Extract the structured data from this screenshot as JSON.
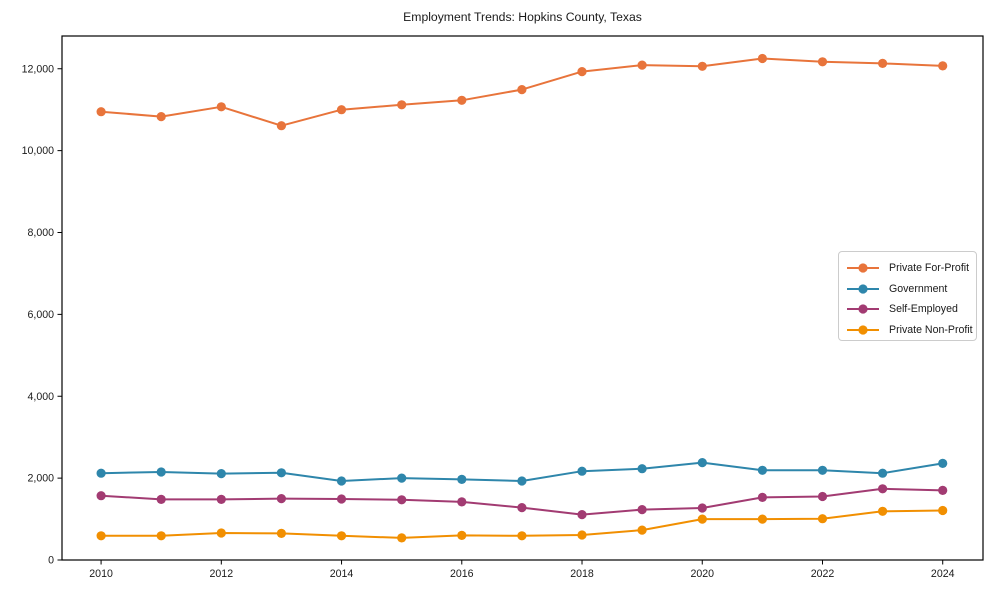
{
  "window": {
    "background_color": "#ffffff"
  },
  "chart_data": {
    "type": "line",
    "title": "Employment Trends: Hopkins County, Texas",
    "xlabel": "",
    "ylabel": "",
    "x": [
      2010,
      2011,
      2012,
      2013,
      2014,
      2015,
      2016,
      2017,
      2018,
      2019,
      2020,
      2021,
      2022,
      2023,
      2024
    ],
    "series": [
      {
        "name": "Private For-Profit",
        "color": "#E8743B",
        "values": [
          10950,
          10830,
          11070,
          10610,
          11000,
          11120,
          11230,
          11490,
          11930,
          12090,
          12060,
          12250,
          12170,
          12130,
          12070
        ]
      },
      {
        "name": "Government",
        "color": "#2E86AB",
        "values": [
          2120,
          2150,
          2110,
          2130,
          1930,
          2000,
          1970,
          1930,
          2170,
          2230,
          2380,
          2190,
          2190,
          2120,
          2360
        ]
      },
      {
        "name": "Self-Employed",
        "color": "#A23B72",
        "values": [
          1570,
          1480,
          1480,
          1500,
          1490,
          1470,
          1420,
          1280,
          1110,
          1230,
          1270,
          1530,
          1550,
          1740,
          1700
        ]
      },
      {
        "name": "Private Non-Profit",
        "color": "#F18F01",
        "values": [
          590,
          590,
          660,
          650,
          590,
          540,
          600,
          590,
          610,
          730,
          1000,
          1000,
          1010,
          1190,
          1210
        ]
      }
    ],
    "x_ticks": [
      2010,
      2012,
      2014,
      2016,
      2018,
      2020,
      2022,
      2024
    ],
    "y_ticks": [
      0,
      2000,
      4000,
      6000,
      8000,
      10000,
      12000
    ],
    "y_tick_labels": [
      "0",
      "2,000",
      "4,000",
      "6,000",
      "8,000",
      "10,000",
      "12,000"
    ],
    "xlim": [
      2009.35,
      2024.67
    ],
    "ylim": [
      0,
      12800
    ],
    "grid": false,
    "legend_position": "center-right",
    "marker": "circle",
    "axis_color": "#000000",
    "text_color": "#1a1a1a"
  }
}
